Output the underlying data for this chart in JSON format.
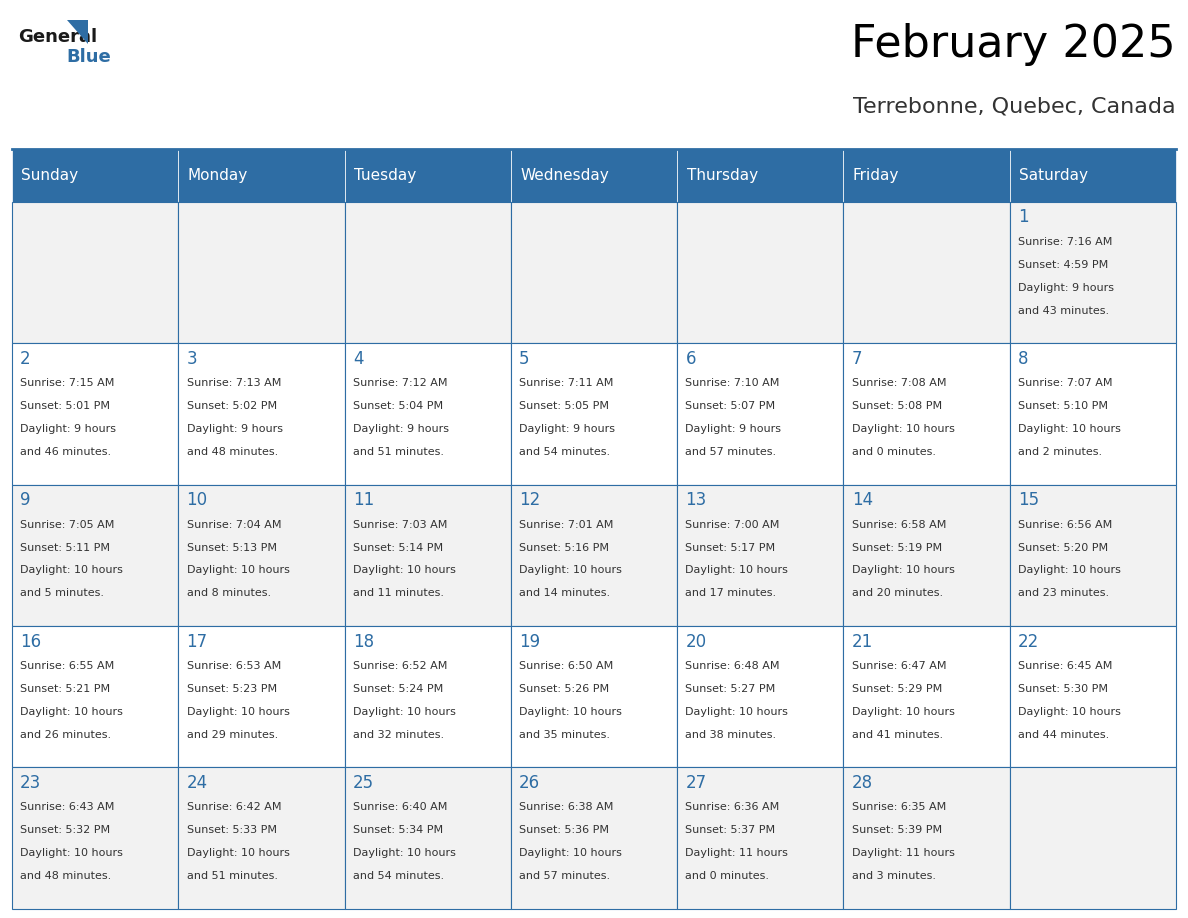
{
  "title": "February 2025",
  "subtitle": "Terrebonne, Quebec, Canada",
  "days_of_week": [
    "Sunday",
    "Monday",
    "Tuesday",
    "Wednesday",
    "Thursday",
    "Friday",
    "Saturday"
  ],
  "header_bg": "#2E6DA4",
  "header_text": "#FFFFFF",
  "cell_bg_odd": "#F2F2F2",
  "cell_bg_even": "#FFFFFF",
  "cell_border": "#2E6DA4",
  "day_number_color": "#2E6DA4",
  "info_text_color": "#333333",
  "weeks": [
    [
      {
        "day": null,
        "sunrise": null,
        "sunset": null,
        "daylight": null
      },
      {
        "day": null,
        "sunrise": null,
        "sunset": null,
        "daylight": null
      },
      {
        "day": null,
        "sunrise": null,
        "sunset": null,
        "daylight": null
      },
      {
        "day": null,
        "sunrise": null,
        "sunset": null,
        "daylight": null
      },
      {
        "day": null,
        "sunrise": null,
        "sunset": null,
        "daylight": null
      },
      {
        "day": null,
        "sunrise": null,
        "sunset": null,
        "daylight": null
      },
      {
        "day": 1,
        "sunrise": "7:16 AM",
        "sunset": "4:59 PM",
        "daylight": "9 hours\nand 43 minutes."
      }
    ],
    [
      {
        "day": 2,
        "sunrise": "7:15 AM",
        "sunset": "5:01 PM",
        "daylight": "9 hours\nand 46 minutes."
      },
      {
        "day": 3,
        "sunrise": "7:13 AM",
        "sunset": "5:02 PM",
        "daylight": "9 hours\nand 48 minutes."
      },
      {
        "day": 4,
        "sunrise": "7:12 AM",
        "sunset": "5:04 PM",
        "daylight": "9 hours\nand 51 minutes."
      },
      {
        "day": 5,
        "sunrise": "7:11 AM",
        "sunset": "5:05 PM",
        "daylight": "9 hours\nand 54 minutes."
      },
      {
        "day": 6,
        "sunrise": "7:10 AM",
        "sunset": "5:07 PM",
        "daylight": "9 hours\nand 57 minutes."
      },
      {
        "day": 7,
        "sunrise": "7:08 AM",
        "sunset": "5:08 PM",
        "daylight": "10 hours\nand 0 minutes."
      },
      {
        "day": 8,
        "sunrise": "7:07 AM",
        "sunset": "5:10 PM",
        "daylight": "10 hours\nand 2 minutes."
      }
    ],
    [
      {
        "day": 9,
        "sunrise": "7:05 AM",
        "sunset": "5:11 PM",
        "daylight": "10 hours\nand 5 minutes."
      },
      {
        "day": 10,
        "sunrise": "7:04 AM",
        "sunset": "5:13 PM",
        "daylight": "10 hours\nand 8 minutes."
      },
      {
        "day": 11,
        "sunrise": "7:03 AM",
        "sunset": "5:14 PM",
        "daylight": "10 hours\nand 11 minutes."
      },
      {
        "day": 12,
        "sunrise": "7:01 AM",
        "sunset": "5:16 PM",
        "daylight": "10 hours\nand 14 minutes."
      },
      {
        "day": 13,
        "sunrise": "7:00 AM",
        "sunset": "5:17 PM",
        "daylight": "10 hours\nand 17 minutes."
      },
      {
        "day": 14,
        "sunrise": "6:58 AM",
        "sunset": "5:19 PM",
        "daylight": "10 hours\nand 20 minutes."
      },
      {
        "day": 15,
        "sunrise": "6:56 AM",
        "sunset": "5:20 PM",
        "daylight": "10 hours\nand 23 minutes."
      }
    ],
    [
      {
        "day": 16,
        "sunrise": "6:55 AM",
        "sunset": "5:21 PM",
        "daylight": "10 hours\nand 26 minutes."
      },
      {
        "day": 17,
        "sunrise": "6:53 AM",
        "sunset": "5:23 PM",
        "daylight": "10 hours\nand 29 minutes."
      },
      {
        "day": 18,
        "sunrise": "6:52 AM",
        "sunset": "5:24 PM",
        "daylight": "10 hours\nand 32 minutes."
      },
      {
        "day": 19,
        "sunrise": "6:50 AM",
        "sunset": "5:26 PM",
        "daylight": "10 hours\nand 35 minutes."
      },
      {
        "day": 20,
        "sunrise": "6:48 AM",
        "sunset": "5:27 PM",
        "daylight": "10 hours\nand 38 minutes."
      },
      {
        "day": 21,
        "sunrise": "6:47 AM",
        "sunset": "5:29 PM",
        "daylight": "10 hours\nand 41 minutes."
      },
      {
        "day": 22,
        "sunrise": "6:45 AM",
        "sunset": "5:30 PM",
        "daylight": "10 hours\nand 44 minutes."
      }
    ],
    [
      {
        "day": 23,
        "sunrise": "6:43 AM",
        "sunset": "5:32 PM",
        "daylight": "10 hours\nand 48 minutes."
      },
      {
        "day": 24,
        "sunrise": "6:42 AM",
        "sunset": "5:33 PM",
        "daylight": "10 hours\nand 51 minutes."
      },
      {
        "day": 25,
        "sunrise": "6:40 AM",
        "sunset": "5:34 PM",
        "daylight": "10 hours\nand 54 minutes."
      },
      {
        "day": 26,
        "sunrise": "6:38 AM",
        "sunset": "5:36 PM",
        "daylight": "10 hours\nand 57 minutes."
      },
      {
        "day": 27,
        "sunrise": "6:36 AM",
        "sunset": "5:37 PM",
        "daylight": "11 hours\nand 0 minutes."
      },
      {
        "day": 28,
        "sunrise": "6:35 AM",
        "sunset": "5:39 PM",
        "daylight": "11 hours\nand 3 minutes."
      },
      {
        "day": null,
        "sunrise": null,
        "sunset": null,
        "daylight": null
      }
    ]
  ]
}
